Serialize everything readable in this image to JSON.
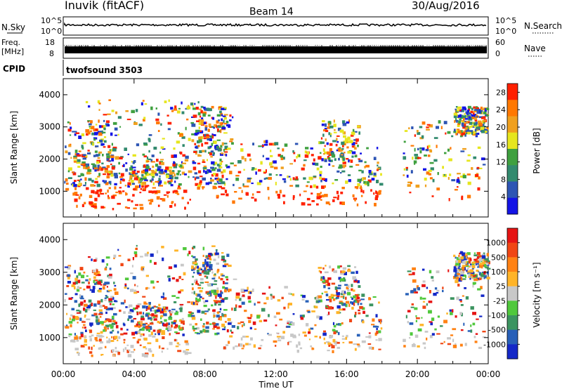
{
  "header": {
    "station": "Inuvik (fitACF)",
    "beam": "Beam 14",
    "date": "30/Aug/2016"
  },
  "noise_panel": {
    "left_label": "N.Sky",
    "right_label": "N.Search",
    "left_ticks": [
      "10^5",
      "10^0"
    ],
    "right_ticks": [
      "10^5",
      "10^0"
    ]
  },
  "freq_panel": {
    "left_label_1": "Freq.",
    "left_label_2": "[MHz]",
    "right_label": "Nave",
    "left_ticks": [
      "18",
      "8"
    ],
    "right_ticks": [
      "60",
      "0"
    ]
  },
  "cpid_panel": {
    "label": "CPID",
    "program": "twofsound 3503"
  },
  "chart_data": [
    {
      "type": "heatmap",
      "title": "",
      "ylabel": "Slant Range [km]",
      "colorbar_label": "Power [dB]",
      "y_ticks": [
        1000,
        2000,
        3000,
        4000
      ],
      "ylim": [
        200,
        4500
      ],
      "colorbar_ticks": [
        4,
        8,
        12,
        16,
        20,
        24,
        28
      ],
      "colorbar_range": [
        0,
        30
      ],
      "colorbar_colors": [
        "#1414e6",
        "#2d55b4",
        "#328a6e",
        "#3fa03f",
        "#e6e61e",
        "#f0a01e",
        "#ff7800",
        "#ff2000"
      ]
    },
    {
      "type": "heatmap",
      "title": "",
      "ylabel": "Slant Range [km]",
      "colorbar_label": "Velocity [m s⁻¹]",
      "y_ticks": [
        1000,
        2000,
        3000,
        4000
      ],
      "ylim": [
        200,
        4500
      ],
      "colorbar_ticks": [
        "1000",
        "500",
        "100",
        "25",
        "-25",
        "-100",
        "-500",
        "-1000"
      ],
      "colorbar_colors": [
        "#1428c8",
        "#2860b8",
        "#3c9460",
        "#50c83c",
        "#c8c8c8",
        "#ffb428",
        "#ff8214",
        "#f04614",
        "#e61414"
      ]
    }
  ],
  "time_axis": {
    "label": "Time UT",
    "ticks": [
      "00:00",
      "04:00",
      "08:00",
      "12:00",
      "16:00",
      "20:00",
      "00:00"
    ]
  }
}
